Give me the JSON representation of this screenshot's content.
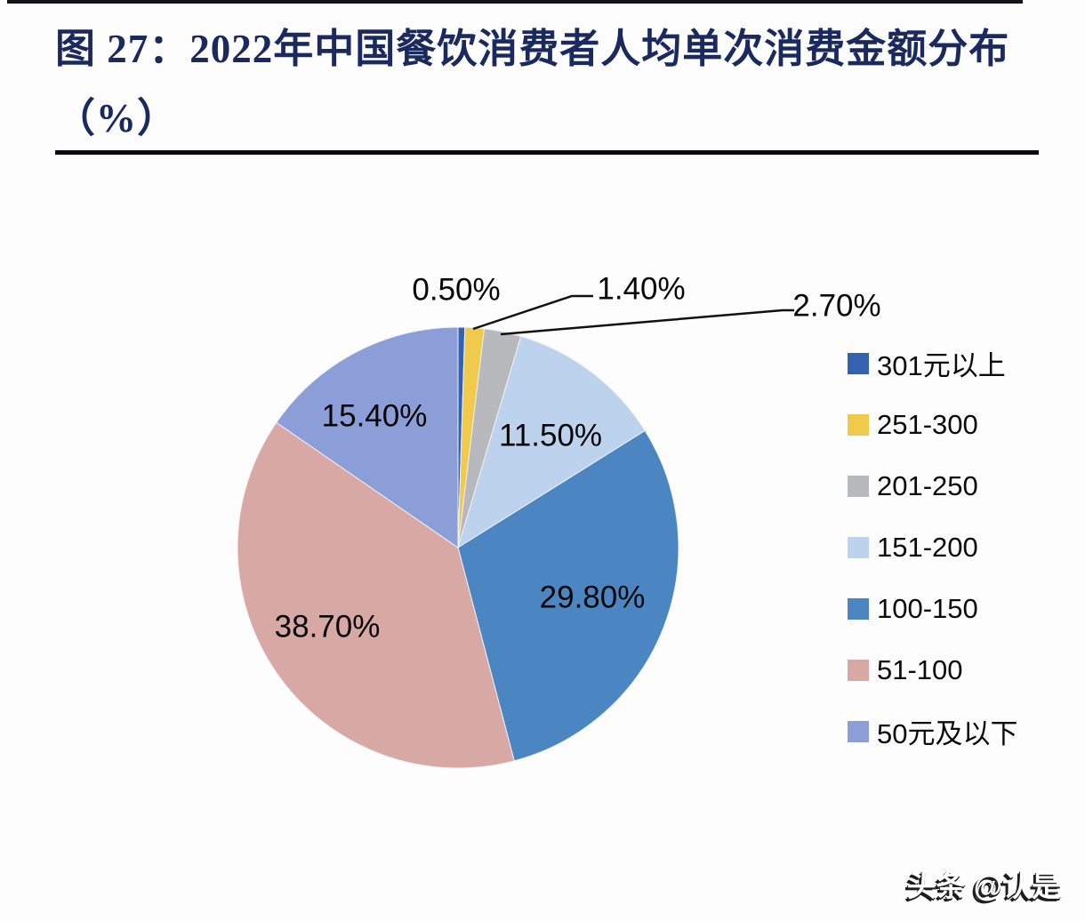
{
  "header": {
    "title": "图 27：2022年中国餐饮消费者人均单次消费金额分布（%）",
    "title_color": "#1b2a5e"
  },
  "watermark": "头条 @认是",
  "chart_data": {
    "type": "pie",
    "title": "2022年中国餐饮消费者人均单次消费金额分布（%）",
    "figure_label": "图 27",
    "unit": "%",
    "start_angle_deg": 0,
    "direction": "clockwise",
    "legend_position": "right",
    "categories": [
      "301元以上",
      "251-300",
      "201-250",
      "151-200",
      "100-150",
      "51-100",
      "50元及以下"
    ],
    "values": [
      0.5,
      1.4,
      2.7,
      11.5,
      29.8,
      38.7,
      15.4
    ],
    "slices": [
      {
        "category": "301元以上",
        "value": 0.5,
        "label": "0.50%",
        "color": "#3562b0",
        "label_placement": "outside"
      },
      {
        "category": "251-300",
        "value": 1.4,
        "label": "1.40%",
        "color": "#efca4d",
        "label_placement": "outside"
      },
      {
        "category": "201-250",
        "value": 2.7,
        "label": "2.70%",
        "color": "#b7b9bd",
        "label_placement": "outside"
      },
      {
        "category": "151-200",
        "value": 11.5,
        "label": "11.50%",
        "color": "#bdd2ec",
        "label_placement": "inside"
      },
      {
        "category": "100-150",
        "value": 29.8,
        "label": "29.80%",
        "color": "#4b86c3",
        "label_placement": "inside"
      },
      {
        "category": "51-100",
        "value": 38.7,
        "label": "38.70%",
        "color": "#d8a8a4",
        "label_placement": "inside"
      },
      {
        "category": "50元及以下",
        "value": 15.4,
        "label": "15.40%",
        "color": "#8c9ed8",
        "label_placement": "inside"
      }
    ]
  }
}
